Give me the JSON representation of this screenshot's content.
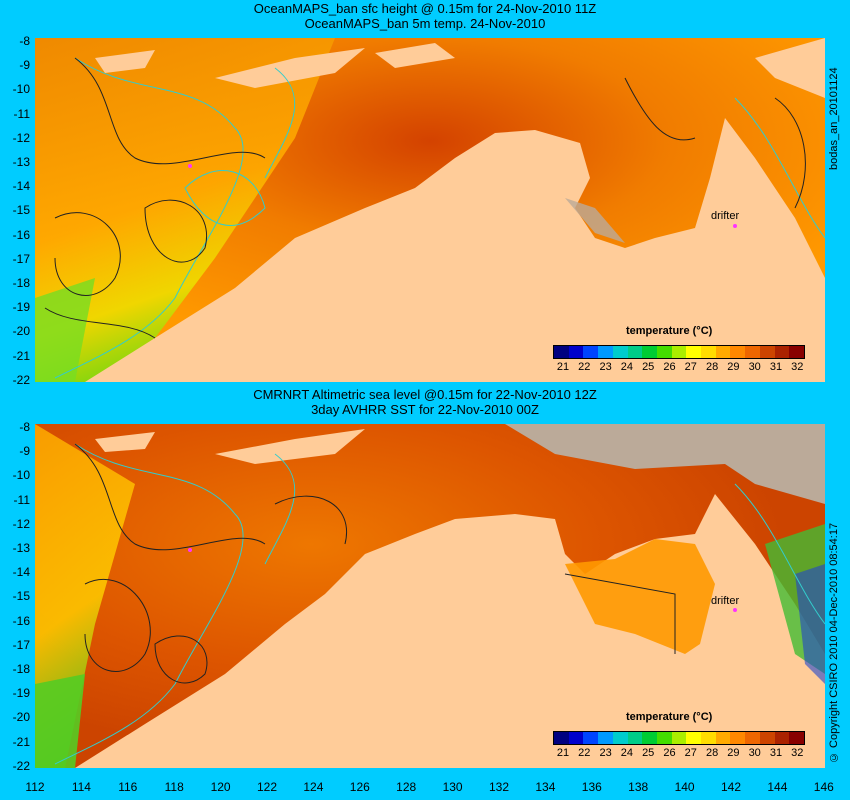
{
  "panels": [
    {
      "title_line1": "OceanMAPS_ban sfc height @ 0.15m for 24-Nov-2010 11Z",
      "title_line2": "OceanMAPS_ban 5m temp. 24-Nov-2010",
      "side_label": "bodas_an_20101124",
      "drifter_label": "drifter",
      "colorbar_title": "temperature (°C)"
    },
    {
      "title_line1": "CMRNRT Altimetric sea level  @0.15m  for 22-Nov-2010 12Z",
      "title_line2": "3day AVHRR SST for 22-Nov-2010 00Z",
      "side_label": "© Copyright CSIRO 2010  04-Dec-2010 08:54:17",
      "drifter_label": "drifter",
      "colorbar_title": "temperature (°C)"
    }
  ],
  "y_ticks": [
    "-8",
    "-9",
    "-10",
    "-11",
    "-12",
    "-13",
    "-14",
    "-15",
    "-16",
    "-17",
    "-18",
    "-19",
    "-20",
    "-21",
    "-22"
  ],
  "x_ticks": [
    "112",
    "114",
    "116",
    "118",
    "120",
    "122",
    "124",
    "126",
    "128",
    "130",
    "132",
    "134",
    "136",
    "138",
    "140",
    "142",
    "144",
    "146"
  ],
  "colorbar_ticks": [
    "21",
    "22",
    "23",
    "24",
    "25",
    "26",
    "27",
    "28",
    "29",
    "30",
    "31",
    "32"
  ],
  "colors": {
    "background": "#00ccff",
    "land": "#ffcc99",
    "contour_cyan": "#33cccc",
    "drifter": "#ff33ff",
    "colorbar": [
      "#000080",
      "#0000cc",
      "#0044ff",
      "#0099ff",
      "#00cccc",
      "#00cc88",
      "#00cc33",
      "#44dd00",
      "#aaee00",
      "#ffff00",
      "#ffdd00",
      "#ffaa00",
      "#ff8800",
      "#ee6600",
      "#cc4400",
      "#aa2200",
      "#880000"
    ]
  }
}
